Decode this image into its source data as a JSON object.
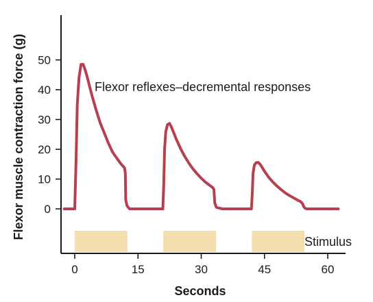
{
  "chart_data": {
    "type": "line",
    "title": "",
    "xlabel": "Seconds",
    "ylabel": "Flexor muscle contraction force (g)",
    "xlim": [
      -3,
      66
    ],
    "ylim": [
      -10,
      62
    ],
    "x_ticks": [
      0,
      15,
      30,
      45,
      60
    ],
    "y_ticks": [
      0,
      10,
      20,
      30,
      40,
      50
    ],
    "grid": false,
    "legend": "none",
    "series_color": "#b5404f",
    "stimulus_color": "#f3dfae",
    "annotation": "Flexor reflexes–decremental responses",
    "stimulus_label": "Stimulus",
    "stimulus_periods": [
      {
        "start": 0,
        "end": 12.5
      },
      {
        "start": 21,
        "end": 33.5
      },
      {
        "start": 42,
        "end": 54.5
      }
    ],
    "series": [
      {
        "x": [
          -2.5,
          0,
          0.3,
          0.6,
          1,
          1.5,
          2,
          2.5,
          3,
          4,
          5,
          6,
          7,
          8,
          9,
          10,
          11,
          11.8,
          12,
          12.1,
          12.4,
          13,
          14,
          16,
          18,
          20,
          20.9,
          21.1,
          21.3,
          21.6,
          22,
          22.5,
          23,
          23.5,
          24,
          25,
          26,
          27,
          28,
          29,
          30,
          31,
          32,
          32.7,
          33,
          33.2,
          33.6,
          35,
          38,
          41,
          41.9,
          42.1,
          42.3,
          42.6,
          43,
          43.5,
          44,
          44.5,
          45,
          46,
          47,
          48,
          49,
          50,
          51,
          52,
          53,
          53.5,
          54,
          54.3,
          54.6,
          55,
          57,
          60,
          62.5
        ],
        "y": [
          0,
          0,
          15,
          35,
          44,
          48.5,
          48.5,
          46.5,
          44,
          38.5,
          33.5,
          29,
          25.5,
          22,
          19,
          17,
          15,
          13.8,
          12,
          3,
          1,
          0,
          0,
          0,
          0,
          0,
          0,
          8,
          20,
          26,
          28.3,
          28.7,
          27.2,
          25.5,
          23.7,
          20.5,
          17.8,
          15.5,
          13.5,
          11.8,
          10.3,
          9,
          7.9,
          7.2,
          6.5,
          2,
          0.5,
          0,
          0,
          0,
          0,
          5,
          12,
          14.7,
          15.5,
          15.6,
          14.9,
          13.8,
          12.6,
          10.6,
          9,
          7.6,
          6.4,
          5.3,
          4.4,
          3.6,
          2.8,
          2.5,
          1.8,
          0.8,
          0.2,
          0,
          0,
          0,
          0
        ]
      }
    ]
  }
}
